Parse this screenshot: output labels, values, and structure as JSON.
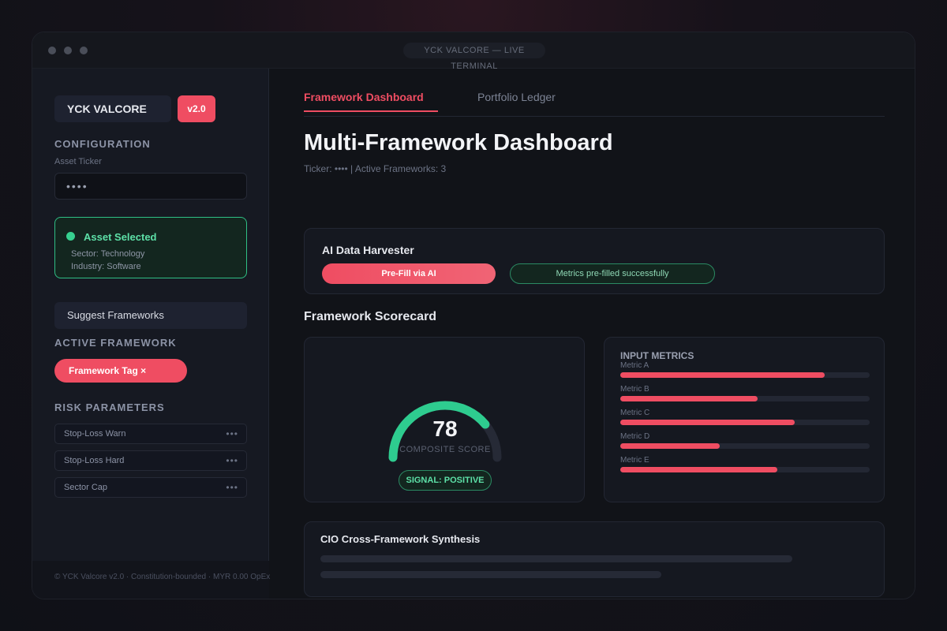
{
  "window": {
    "title": "YCK VALCORE — LIVE TERMINAL"
  },
  "sidebar": {
    "brand": "YCK VALCORE",
    "version": "v2.0",
    "configuration": {
      "heading": "CONFIGURATION",
      "ticker_label": "Asset Ticker",
      "ticker_value": "••••"
    },
    "asset_card": {
      "title": "Asset Selected",
      "sector": "Sector: Technology",
      "industry": "Industry: Software",
      "status_color": "#36d08f"
    },
    "suggest_button": "Suggest Frameworks",
    "active_framework": {
      "heading": "ACTIVE FRAMEWORK",
      "tag": "Framework Tag ×"
    },
    "risk": {
      "heading": "RISK PARAMETERS",
      "rows": [
        {
          "label": "Stop-Loss Warn",
          "value": "•••"
        },
        {
          "label": "Stop-Loss Hard",
          "value": "•••"
        },
        {
          "label": "Sector Cap",
          "value": "•••"
        }
      ]
    },
    "footer": "© YCK Valcore v2.0 · Constitution-bounded · MYR 0.00 OpEx"
  },
  "main": {
    "tabs": [
      {
        "label": "Framework Dashboard",
        "active": true
      },
      {
        "label": "Portfolio Ledger",
        "active": false
      }
    ],
    "title": "Multi-Framework Dashboard",
    "subtitle": "Ticker: ••••  |  Active Frameworks: 3",
    "harvester": {
      "title": "AI Data Harvester",
      "prefill_button": "Pre-Fill via AI",
      "status": "Metrics pre-filled successfully"
    },
    "scorecard": {
      "title": "Framework Scorecard",
      "score": "78",
      "score_fraction": 0.78,
      "score_label": "COMPOSITE SCORE",
      "signal": "SIGNAL: POSITIVE",
      "gauge_color": "#2ecc8f",
      "metrics_title": "INPUT METRICS",
      "metrics": [
        {
          "label": "Metric A",
          "fraction": 0.82
        },
        {
          "label": "Metric B",
          "fraction": 0.55
        },
        {
          "label": "Metric C",
          "fraction": 0.7
        },
        {
          "label": "Metric D",
          "fraction": 0.4
        },
        {
          "label": "Metric E",
          "fraction": 0.63
        }
      ]
    },
    "synthesis": {
      "title": "CIO Cross-Framework Synthesis"
    }
  },
  "colors": {
    "accent": "#ef4d62",
    "success": "#36d08f",
    "background": "#111318"
  }
}
